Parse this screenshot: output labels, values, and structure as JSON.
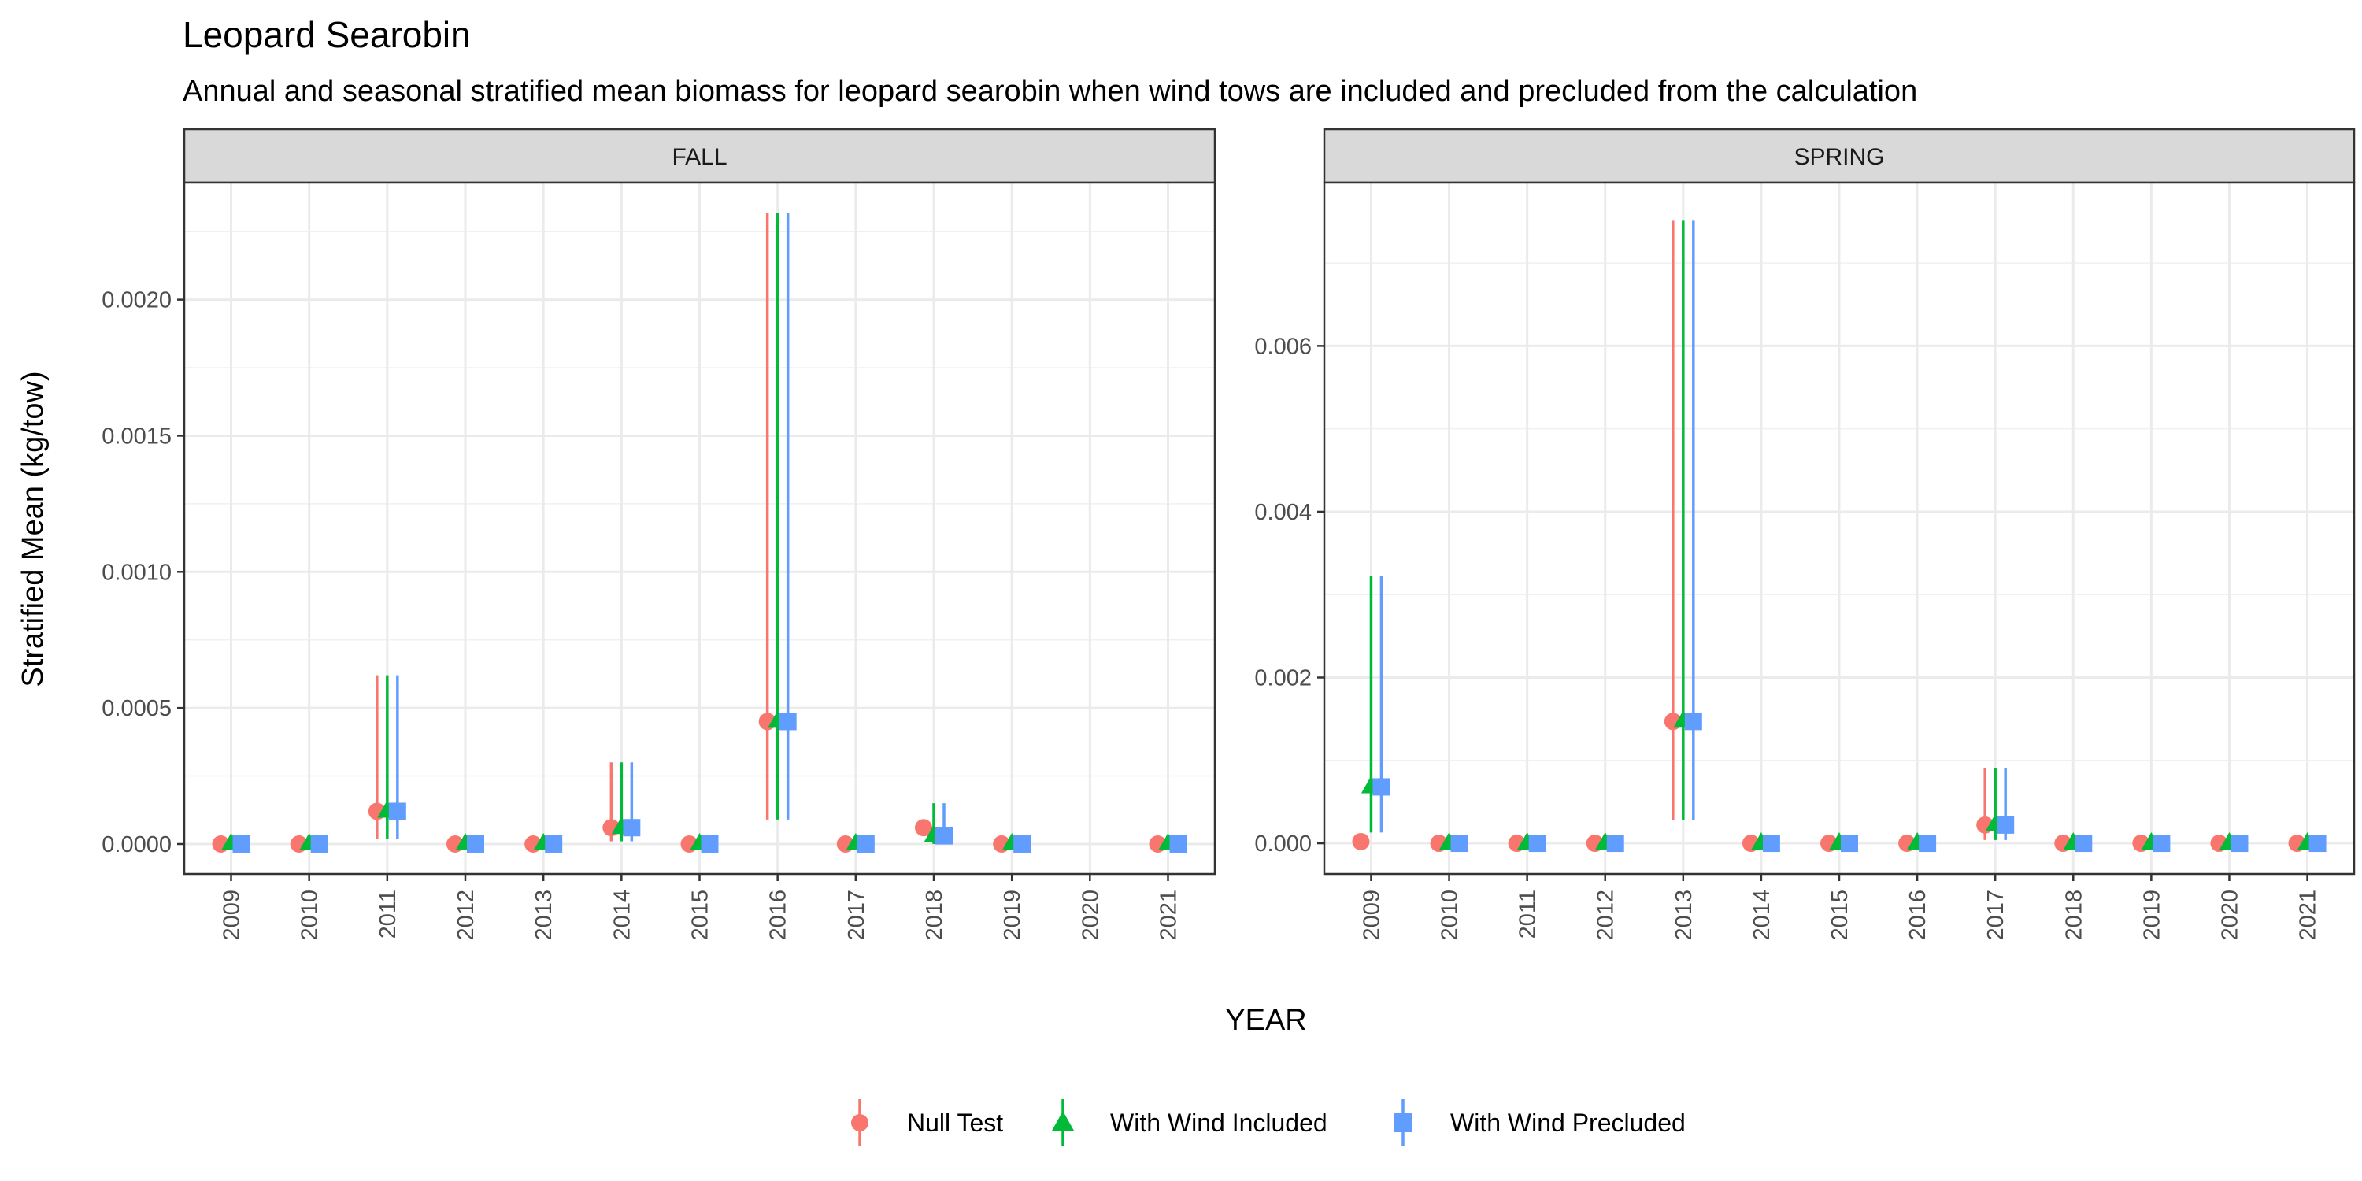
{
  "chart_data": {
    "type": "scatter",
    "title": "Leopard Searobin",
    "subtitle": "Annual and seasonal stratified mean biomass for leopard searobin when wind tows are included and precluded from the calculation",
    "xlabel": "YEAR",
    "ylabel": "Stratified Mean (kg/tow)",
    "grid": true,
    "legend_position": "bottom",
    "series_style": [
      {
        "name": "Null Test",
        "color": "#F8766D",
        "shape": "circle"
      },
      {
        "name": "With Wind Included",
        "color": "#00BA38",
        "shape": "triangle"
      },
      {
        "name": "With Wind Precluded",
        "color": "#619CFF",
        "shape": "square"
      }
    ],
    "panels": [
      {
        "name": "FALL",
        "years": [
          "2009",
          "2010",
          "2011",
          "2012",
          "2013",
          "2014",
          "2015",
          "2016",
          "2017",
          "2018",
          "2019",
          "2020",
          "2021"
        ],
        "ylim": [
          -0.00011,
          0.00243
        ],
        "yticks": [
          0,
          0.0005,
          0.001,
          0.0015,
          0.002
        ],
        "ytick_labels": [
          "0.0000",
          "0.0005",
          "0.0010",
          "0.0015",
          "0.0020"
        ],
        "series": [
          {
            "name": "Null Test",
            "points": [
              {
                "x": "2009",
                "y": 0
              },
              {
                "x": "2010",
                "y": 0
              },
              {
                "x": "2011",
                "y": 0.00012,
                "lo": 2e-05,
                "hi": 0.00062
              },
              {
                "x": "2012",
                "y": 0
              },
              {
                "x": "2013",
                "y": 0
              },
              {
                "x": "2014",
                "y": 6e-05,
                "lo": 1e-05,
                "hi": 0.0003
              },
              {
                "x": "2015",
                "y": 0
              },
              {
                "x": "2016",
                "y": 0.00045,
                "lo": 9e-05,
                "hi": 0.00232
              },
              {
                "x": "2017",
                "y": 0
              },
              {
                "x": "2018",
                "y": 6e-05
              },
              {
                "x": "2019",
                "y": 0
              },
              {
                "x": "2021",
                "y": 0
              }
            ]
          },
          {
            "name": "With Wind Included",
            "points": [
              {
                "x": "2009",
                "y": 0
              },
              {
                "x": "2010",
                "y": 0
              },
              {
                "x": "2011",
                "y": 0.00012,
                "lo": 2e-05,
                "hi": 0.00062
              },
              {
                "x": "2012",
                "y": 0
              },
              {
                "x": "2013",
                "y": 0
              },
              {
                "x": "2014",
                "y": 6e-05,
                "lo": 1e-05,
                "hi": 0.0003
              },
              {
                "x": "2015",
                "y": 0
              },
              {
                "x": "2016",
                "y": 0.00045,
                "lo": 9e-05,
                "hi": 0.00232
              },
              {
                "x": "2017",
                "y": 0
              },
              {
                "x": "2018",
                "y": 3e-05,
                "lo": 0.0,
                "hi": 0.00015
              },
              {
                "x": "2019",
                "y": 0
              },
              {
                "x": "2021",
                "y": 0
              }
            ]
          },
          {
            "name": "With Wind Precluded",
            "points": [
              {
                "x": "2009",
                "y": 0
              },
              {
                "x": "2010",
                "y": 0
              },
              {
                "x": "2011",
                "y": 0.00012,
                "lo": 2e-05,
                "hi": 0.00062
              },
              {
                "x": "2012",
                "y": 0
              },
              {
                "x": "2013",
                "y": 0
              },
              {
                "x": "2014",
                "y": 6e-05,
                "lo": 1e-05,
                "hi": 0.0003
              },
              {
                "x": "2015",
                "y": 0
              },
              {
                "x": "2016",
                "y": 0.00045,
                "lo": 9e-05,
                "hi": 0.00232
              },
              {
                "x": "2017",
                "y": 0
              },
              {
                "x": "2018",
                "y": 3e-05,
                "lo": 0.0,
                "hi": 0.00015
              },
              {
                "x": "2019",
                "y": 0
              },
              {
                "x": "2021",
                "y": 0
              }
            ]
          }
        ]
      },
      {
        "name": "SPRING",
        "years": [
          "2009",
          "2010",
          "2011",
          "2012",
          "2013",
          "2014",
          "2015",
          "2016",
          "2017",
          "2018",
          "2019",
          "2020",
          "2021"
        ],
        "ylim": [
          -0.00037,
          0.00797
        ],
        "yticks": [
          0,
          0.002,
          0.004,
          0.006
        ],
        "ytick_labels": [
          "0.000",
          "0.002",
          "0.004",
          "0.006"
        ],
        "series": [
          {
            "name": "Null Test",
            "points": [
              {
                "x": "2009",
                "y": 2e-05
              },
              {
                "x": "2010",
                "y": 0
              },
              {
                "x": "2011",
                "y": 0
              },
              {
                "x": "2012",
                "y": 0
              },
              {
                "x": "2013",
                "y": 0.00147,
                "lo": 0.00028,
                "hi": 0.00751
              },
              {
                "x": "2014",
                "y": 0
              },
              {
                "x": "2015",
                "y": 0
              },
              {
                "x": "2016",
                "y": 0
              },
              {
                "x": "2017",
                "y": 0.00022,
                "lo": 4e-05,
                "hi": 0.00091
              },
              {
                "x": "2018",
                "y": 0
              },
              {
                "x": "2019",
                "y": 0
              },
              {
                "x": "2020",
                "y": 0
              },
              {
                "x": "2021",
                "y": 0
              }
            ]
          },
          {
            "name": "With Wind Included",
            "points": [
              {
                "x": "2009",
                "y": 0.00068,
                "lo": 0.00013,
                "hi": 0.00323
              },
              {
                "x": "2010",
                "y": 0
              },
              {
                "x": "2011",
                "y": 0
              },
              {
                "x": "2012",
                "y": 0
              },
              {
                "x": "2013",
                "y": 0.00147,
                "lo": 0.00028,
                "hi": 0.00751
              },
              {
                "x": "2014",
                "y": 0
              },
              {
                "x": "2015",
                "y": 0
              },
              {
                "x": "2016",
                "y": 0
              },
              {
                "x": "2017",
                "y": 0.00022,
                "lo": 4e-05,
                "hi": 0.00091
              },
              {
                "x": "2018",
                "y": 0
              },
              {
                "x": "2019",
                "y": 0
              },
              {
                "x": "2020",
                "y": 0
              },
              {
                "x": "2021",
                "y": 0
              }
            ]
          },
          {
            "name": "With Wind Precluded",
            "points": [
              {
                "x": "2009",
                "y": 0.00068,
                "lo": 0.00013,
                "hi": 0.00323
              },
              {
                "x": "2010",
                "y": 0
              },
              {
                "x": "2011",
                "y": 0
              },
              {
                "x": "2012",
                "y": 0
              },
              {
                "x": "2013",
                "y": 0.00147,
                "lo": 0.00028,
                "hi": 0.00751
              },
              {
                "x": "2014",
                "y": 0
              },
              {
                "x": "2015",
                "y": 0
              },
              {
                "x": "2016",
                "y": 0
              },
              {
                "x": "2017",
                "y": 0.00022,
                "lo": 4e-05,
                "hi": 0.00091
              },
              {
                "x": "2018",
                "y": 0
              },
              {
                "x": "2019",
                "y": 0
              },
              {
                "x": "2020",
                "y": 0
              },
              {
                "x": "2021",
                "y": 0
              }
            ]
          }
        ]
      }
    ]
  }
}
